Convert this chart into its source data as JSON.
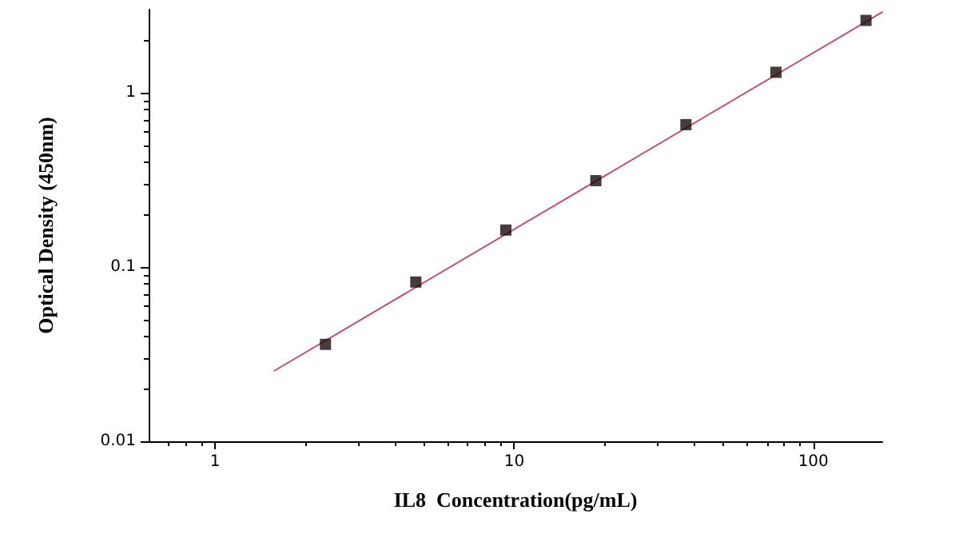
{
  "chart_data": {
    "type": "scatter",
    "xlabel": "IL8  Concentration(pg/mL)",
    "ylabel": "Optical Density (450nm)",
    "log": "xy",
    "grid": false,
    "xlim": [
      0.6,
      170
    ],
    "ylim": [
      0.01,
      3
    ],
    "xticks": [
      1,
      10,
      100
    ],
    "yticks": [
      0.01,
      0.1,
      1
    ],
    "series": [
      {
        "marker": "square",
        "color": "#1a0a0a",
        "x": [
          2.34,
          4.69,
          9.38,
          18.75,
          37.5,
          75,
          150
        ],
        "values": [
          0.036,
          0.082,
          0.163,
          0.313,
          0.656,
          1.31,
          2.6
        ]
      },
      {
        "type": "line",
        "marker": "none",
        "line_style": "solid",
        "color": "#c05070",
        "x": [
          1.58,
          170
        ],
        "values": [
          0.0254,
          2.9
        ]
      }
    ]
  }
}
